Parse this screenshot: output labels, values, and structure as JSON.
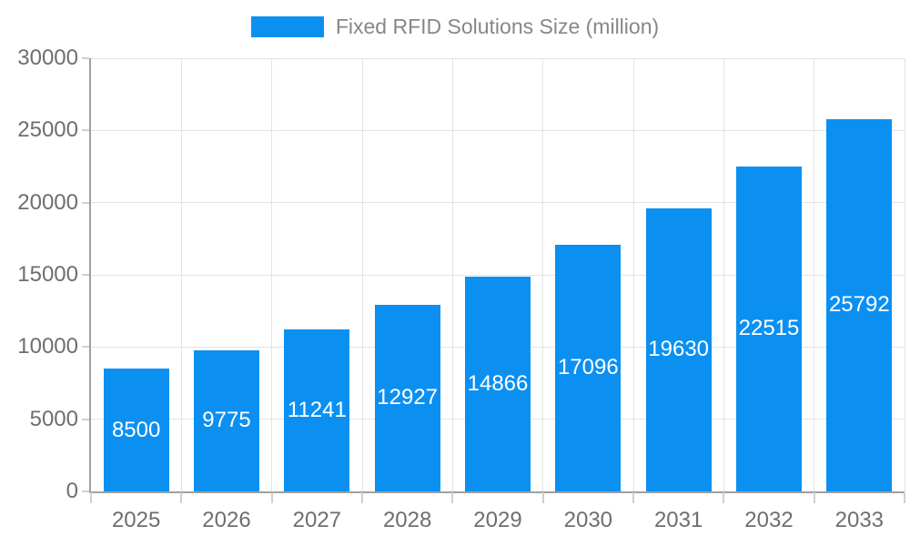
{
  "legend": {
    "label": "Fixed RFID Solutions Size (million)",
    "swatch_color": "#0b90f2"
  },
  "chart_data": {
    "type": "bar",
    "title": "Fixed RFID Solutions Size (million)",
    "categories": [
      "2025",
      "2026",
      "2027",
      "2028",
      "2029",
      "2030",
      "2031",
      "2032",
      "2033"
    ],
    "values": [
      8500,
      9775,
      11241,
      12927,
      14866,
      17096,
      19630,
      22515,
      25792
    ],
    "xlabel": "",
    "ylabel": "",
    "ylim": [
      0,
      30000
    ],
    "yticks": [
      0,
      5000,
      10000,
      15000,
      20000,
      25000,
      30000
    ],
    "grid": true,
    "legend_position": "top",
    "value_labels": "centered-inside-bars",
    "colors": {
      "bar": "#0b90f2",
      "value_label": "#ffffff",
      "tick_label": "#6e6e6e",
      "legend_label": "#878787",
      "gridline": "#e3e3e3",
      "axis_line": "#9f9f9f",
      "tick_mark": "#cfcfcf",
      "background": "#ffffff"
    }
  }
}
